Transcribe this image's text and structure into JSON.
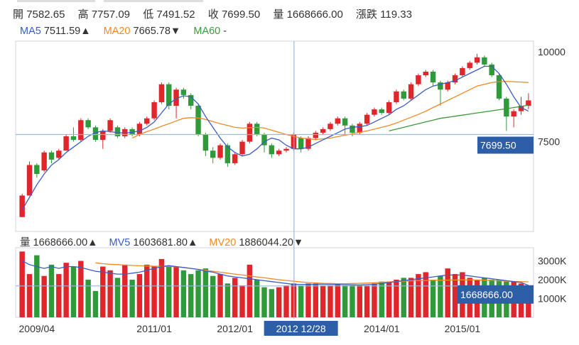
{
  "header": {
    "open_label": "開",
    "open_value": "7582.65",
    "high_label": "高",
    "high_value": "7757.09",
    "low_label": "低",
    "low_value": "7491.52",
    "close_label": "收",
    "close_value": "7699.50",
    "volume_label": "量",
    "volume_value": "1668666.00",
    "change_label": "漲跌",
    "change_value": "119.33"
  },
  "ma_legend": {
    "ma5_label": "MA5",
    "ma5_value": "7511.59▲",
    "ma20_label": "MA20",
    "ma20_value": "7665.78▼",
    "ma60_label": "MA60",
    "ma60_value": "-"
  },
  "volume_legend": {
    "vol_label": "量",
    "vol_value": "1668666.00▲",
    "mv5_label": "MV5",
    "mv5_value": "1603681.80▲",
    "mv20_label": "MV20",
    "mv20_value": "1886044.20▼"
  },
  "colors": {
    "up": "#e0262b",
    "down": "#2f9a3a",
    "ma5": "#3b5cc4",
    "ma20": "#f08a24",
    "ma60": "#3a9a3a",
    "axis": "#cfd6e2",
    "tag": "#2d5ea8",
    "crosshair": "#9fb6d8"
  },
  "chart_data": [
    {
      "type": "candlestick",
      "title": "",
      "ylim": [
        5000,
        10300
      ],
      "y_ticks": [
        "10000",
        "7500"
      ],
      "y_tick_values": [
        10000,
        7500
      ],
      "crosshair_label": "7699.50",
      "crosshair_value": 7699.5,
      "crosshair_period_index": 37,
      "candles": [
        {
          "o": 5400,
          "c": 6000,
          "h": 6050,
          "l": 5400
        },
        {
          "o": 6000,
          "c": 6850,
          "h": 6950,
          "l": 6000
        },
        {
          "o": 6850,
          "c": 6600,
          "h": 6900,
          "l": 6500
        },
        {
          "o": 6700,
          "c": 7200,
          "h": 7250,
          "l": 6650
        },
        {
          "o": 7200,
          "c": 7000,
          "h": 7250,
          "l": 6900
        },
        {
          "o": 7050,
          "c": 7250,
          "h": 7300,
          "l": 7000
        },
        {
          "o": 7250,
          "c": 7650,
          "h": 7700,
          "l": 7250
        },
        {
          "o": 7650,
          "c": 7550,
          "h": 7900,
          "l": 7500
        },
        {
          "o": 7550,
          "c": 8100,
          "h": 8150,
          "l": 7500
        },
        {
          "o": 8100,
          "c": 7900,
          "h": 8150,
          "l": 7850
        },
        {
          "o": 7900,
          "c": 7550,
          "h": 7950,
          "l": 7500
        },
        {
          "o": 7550,
          "c": 7800,
          "h": 7850,
          "l": 7300
        },
        {
          "o": 7800,
          "c": 8100,
          "h": 8150,
          "l": 7750
        },
        {
          "o": 7900,
          "c": 7650,
          "h": 7950,
          "l": 7600
        },
        {
          "o": 7650,
          "c": 7850,
          "h": 7900,
          "l": 7600
        },
        {
          "o": 7850,
          "c": 7700,
          "h": 7900,
          "l": 7650
        },
        {
          "o": 7700,
          "c": 8000,
          "h": 8050,
          "l": 7650
        },
        {
          "o": 8000,
          "c": 8150,
          "h": 8200,
          "l": 7950
        },
        {
          "o": 8150,
          "c": 8600,
          "h": 8650,
          "l": 8100
        },
        {
          "o": 8600,
          "c": 9100,
          "h": 9150,
          "l": 8550
        },
        {
          "o": 9100,
          "c": 8500,
          "h": 9150,
          "l": 8400
        },
        {
          "o": 8500,
          "c": 8950,
          "h": 9000,
          "l": 8150
        },
        {
          "o": 8950,
          "c": 8800,
          "h": 9000,
          "l": 8700
        },
        {
          "o": 8800,
          "c": 8500,
          "h": 8850,
          "l": 8400
        },
        {
          "o": 8500,
          "c": 7700,
          "h": 8550,
          "l": 7650
        },
        {
          "o": 7700,
          "c": 7250,
          "h": 7750,
          "l": 7100
        },
        {
          "o": 7250,
          "c": 7050,
          "h": 7350,
          "l": 6900
        },
        {
          "o": 7050,
          "c": 7400,
          "h": 7450,
          "l": 7000
        },
        {
          "o": 7400,
          "c": 6900,
          "h": 7450,
          "l": 6800
        },
        {
          "o": 6900,
          "c": 7150,
          "h": 7200,
          "l": 6850
        },
        {
          "o": 7150,
          "c": 7500,
          "h": 7550,
          "l": 7100
        },
        {
          "o": 7500,
          "c": 8000,
          "h": 8050,
          "l": 7450
        },
        {
          "o": 8000,
          "c": 7700,
          "h": 8050,
          "l": 7650
        },
        {
          "o": 7700,
          "c": 7400,
          "h": 7750,
          "l": 7200
        },
        {
          "o": 7400,
          "c": 7150,
          "h": 7450,
          "l": 7050
        },
        {
          "o": 7150,
          "c": 7250,
          "h": 7300,
          "l": 7100
        },
        {
          "o": 7250,
          "c": 7300,
          "h": 7350,
          "l": 7200
        },
        {
          "o": 7300,
          "c": 7700,
          "h": 7750,
          "l": 7250
        },
        {
          "o": 7600,
          "c": 7300,
          "h": 7650,
          "l": 7200
        },
        {
          "o": 7300,
          "c": 7600,
          "h": 7650,
          "l": 7250
        },
        {
          "o": 7600,
          "c": 7750,
          "h": 7800,
          "l": 7550
        },
        {
          "o": 7750,
          "c": 7850,
          "h": 7900,
          "l": 7700
        },
        {
          "o": 7850,
          "c": 8000,
          "h": 8050,
          "l": 7800
        },
        {
          "o": 8000,
          "c": 8150,
          "h": 8200,
          "l": 7950
        },
        {
          "o": 8150,
          "c": 7950,
          "h": 8200,
          "l": 7700
        },
        {
          "o": 7950,
          "c": 7750,
          "h": 8000,
          "l": 7650
        },
        {
          "o": 7750,
          "c": 8000,
          "h": 8050,
          "l": 7700
        },
        {
          "o": 8000,
          "c": 8250,
          "h": 8300,
          "l": 7950
        },
        {
          "o": 8250,
          "c": 8400,
          "h": 8450,
          "l": 8200
        },
        {
          "o": 8400,
          "c": 8300,
          "h": 8450,
          "l": 8250
        },
        {
          "o": 8300,
          "c": 8600,
          "h": 8650,
          "l": 8250
        },
        {
          "o": 8600,
          "c": 8900,
          "h": 8950,
          "l": 8550
        },
        {
          "o": 8900,
          "c": 8700,
          "h": 8950,
          "l": 8650
        },
        {
          "o": 8700,
          "c": 9100,
          "h": 9150,
          "l": 8650
        },
        {
          "o": 9100,
          "c": 9350,
          "h": 9400,
          "l": 9050
        },
        {
          "o": 9350,
          "c": 9450,
          "h": 9500,
          "l": 9300
        },
        {
          "o": 9450,
          "c": 9150,
          "h": 9500,
          "l": 9050
        },
        {
          "o": 9150,
          "c": 8950,
          "h": 9200,
          "l": 8500
        },
        {
          "o": 8950,
          "c": 9150,
          "h": 9200,
          "l": 8900
        },
        {
          "o": 9150,
          "c": 9350,
          "h": 9400,
          "l": 9100
        },
        {
          "o": 9350,
          "c": 9550,
          "h": 9600,
          "l": 9300
        },
        {
          "o": 9550,
          "c": 9700,
          "h": 9750,
          "l": 9500
        },
        {
          "o": 9700,
          "c": 9850,
          "h": 9950,
          "l": 9650
        },
        {
          "o": 9850,
          "c": 9650,
          "h": 9900,
          "l": 9600
        },
        {
          "o": 9650,
          "c": 9350,
          "h": 9700,
          "l": 9300
        },
        {
          "o": 9350,
          "c": 8700,
          "h": 9400,
          "l": 8650
        },
        {
          "o": 8700,
          "c": 8200,
          "h": 8750,
          "l": 7800
        },
        {
          "o": 8200,
          "c": 8350,
          "h": 8400,
          "l": 7900
        },
        {
          "o": 8350,
          "c": 8500,
          "h": 8750,
          "l": 8250
        },
        {
          "o": 8500,
          "c": 8650,
          "h": 8850,
          "l": 8400
        }
      ],
      "ma5": [
        5600,
        5950,
        6300,
        6600,
        6850,
        7000,
        7200,
        7350,
        7500,
        7650,
        7750,
        7800,
        7780,
        7750,
        7740,
        7760,
        7800,
        7900,
        8050,
        8300,
        8550,
        8700,
        8780,
        8750,
        8550,
        8200,
        7900,
        7600,
        7350,
        7200,
        7100,
        7150,
        7300,
        7500,
        7600,
        7550,
        7400,
        7300,
        7300,
        7350,
        7450,
        7550,
        7650,
        7750,
        7850,
        7900,
        7920,
        7950,
        8050,
        8150,
        8250,
        8400,
        8500,
        8650,
        8800,
        8950,
        9050,
        9100,
        9150,
        9200,
        9300,
        9400,
        9500,
        9600,
        9600,
        9400,
        9100,
        8750,
        8450,
        8350
      ],
      "ma20": [
        null,
        null,
        null,
        null,
        null,
        null,
        null,
        null,
        null,
        null,
        null,
        null,
        null,
        null,
        null,
        7600,
        7700,
        7780,
        7850,
        7930,
        8000,
        8080,
        8150,
        8170,
        8160,
        8120,
        8060,
        8000,
        7950,
        7900,
        7880,
        7890,
        7900,
        7880,
        7820,
        7760,
        7700,
        7650,
        7600,
        7580,
        7560,
        7580,
        7600,
        7640,
        7680,
        7720,
        7760,
        7800,
        7850,
        7900,
        7950,
        8020,
        8100,
        8180,
        8260,
        8350,
        8450,
        8550,
        8650,
        8750,
        8850,
        8950,
        9050,
        9100,
        9150,
        9170,
        9180,
        9170,
        9160,
        9150
      ],
      "ma60": [
        null,
        null,
        null,
        null,
        null,
        null,
        null,
        null,
        null,
        null,
        null,
        null,
        null,
        null,
        null,
        null,
        null,
        null,
        null,
        null,
        null,
        null,
        null,
        null,
        null,
        null,
        null,
        null,
        null,
        null,
        null,
        null,
        null,
        null,
        null,
        null,
        null,
        null,
        null,
        null,
        null,
        null,
        null,
        null,
        null,
        null,
        null,
        null,
        null,
        null,
        7800,
        7850,
        7900,
        7950,
        8000,
        8050,
        8100,
        8150,
        8180,
        8210,
        8240,
        8270,
        8300,
        8330,
        8360,
        8390,
        8420,
        8450,
        8480,
        8520
      ]
    },
    {
      "type": "bar",
      "title": "",
      "ylim": [
        0,
        3700
      ],
      "y_ticks": [
        "3000K",
        "2000K",
        "1000K"
      ],
      "y_tick_values": [
        3000,
        2000,
        1000
      ],
      "crosshair_label": "1668666.00",
      "crosshair_value": 1668.7,
      "x_tick_labels": [
        "2009/04",
        "2011/01",
        "2012/01",
        "2012 12/28",
        "2014/01",
        "2015/01"
      ],
      "x_tick_indices": [
        2,
        18,
        29,
        38,
        49,
        60
      ],
      "highlighted_tick": "2012 12/28",
      "volumes": [
        3500,
        2300,
        3300,
        2200,
        2800,
        2300,
        2900,
        2700,
        3000,
        2000,
        1400,
        2700,
        2500,
        2100,
        2800,
        2000,
        2300,
        2800,
        2700,
        3100,
        2700,
        2700,
        2500,
        2300,
        2500,
        2600,
        2200,
        2300,
        1800,
        2100,
        1700,
        2800,
        2000,
        1600,
        1500,
        1600,
        1700,
        1800,
        1700,
        1800,
        1800,
        1700,
        1700,
        1800,
        1700,
        1700,
        1700,
        1700,
        1800,
        1900,
        1900,
        2000,
        2100,
        2100,
        2300,
        2400,
        2000,
        2200,
        2600,
        2300,
        2400,
        2100,
        2000,
        2100,
        2000,
        2000,
        1900,
        1900,
        1800,
        1700
      ],
      "mv5": [
        3000,
        2800,
        2700,
        2600,
        2700,
        2600,
        2700,
        2700,
        2650,
        2550,
        2450,
        2400,
        2350,
        2300,
        2300,
        2350,
        2400,
        2500,
        2600,
        2700,
        2750,
        2700,
        2650,
        2600,
        2550,
        2450,
        2400,
        2300,
        2200,
        2150,
        2100,
        2050,
        2000,
        1950,
        1900,
        1850,
        1800,
        1750,
        1750,
        1750,
        1760,
        1760,
        1750,
        1750,
        1740,
        1730,
        1720,
        1740,
        1760,
        1800,
        1850,
        1900,
        1960,
        2000,
        2050,
        2100,
        2150,
        2200,
        2250,
        2250,
        2250,
        2200,
        2150,
        2100,
        2050,
        2000,
        1950,
        1900,
        1850,
        1700
      ],
      "mv20": [
        null,
        null,
        null,
        null,
        null,
        null,
        null,
        null,
        null,
        null,
        2900,
        2850,
        2820,
        2800,
        2780,
        2760,
        2740,
        2730,
        2720,
        2710,
        2700,
        2690,
        2650,
        2600,
        2550,
        2500,
        2450,
        2400,
        2350,
        2300,
        2250,
        2200,
        2150,
        2100,
        2050,
        2000,
        1960,
        1920,
        1880,
        1850,
        1830,
        1810,
        1800,
        1790,
        1790,
        1800,
        1810,
        1820,
        1840,
        1860,
        1880,
        1900,
        1920,
        1940,
        1950,
        1960,
        1970,
        1975,
        1980,
        1985,
        1990,
        1990,
        1985,
        1975,
        1960,
        1940,
        1920,
        1905,
        1895,
        1886
      ]
    }
  ]
}
